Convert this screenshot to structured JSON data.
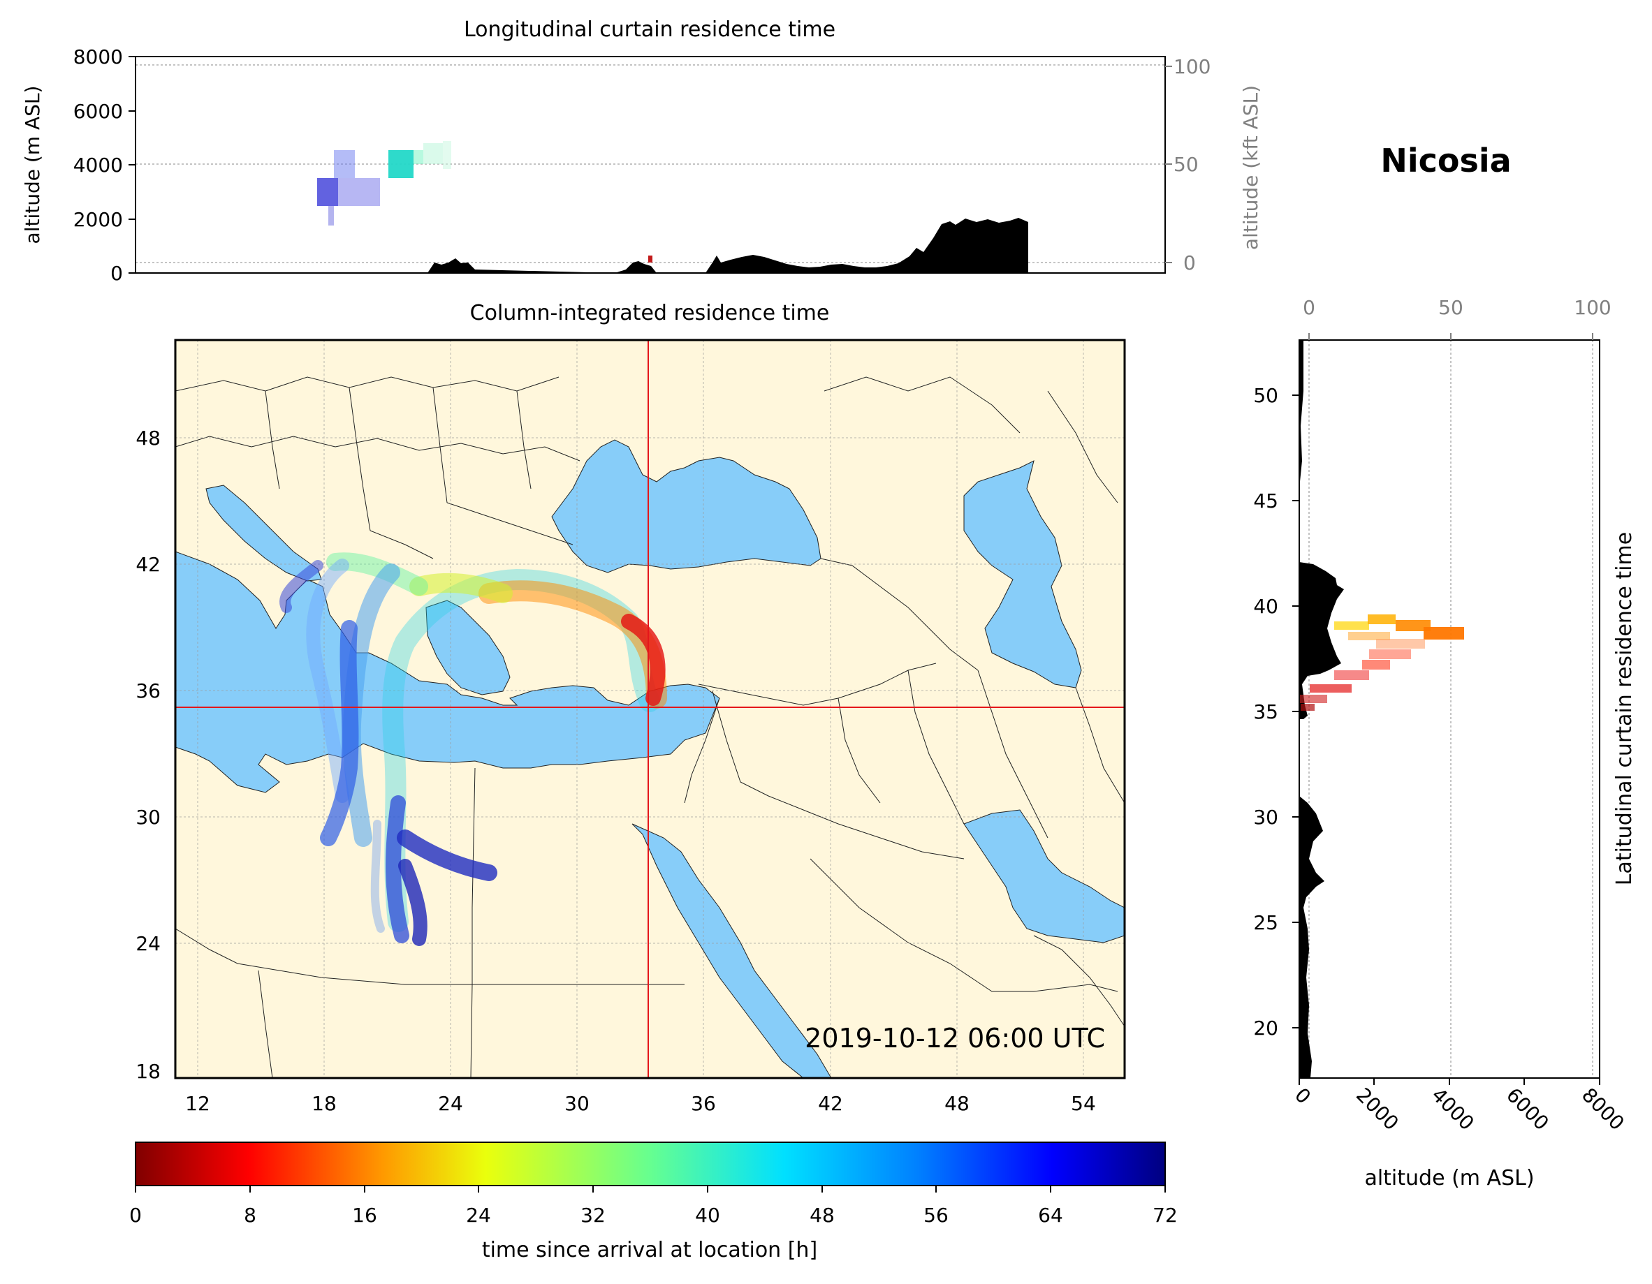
{
  "station": "Nicosia",
  "timestamp": "2019-10-12 06:00 UTC",
  "colors": {
    "land": "#fff7dc",
    "water": "#87cdf9",
    "crosshair": "#e4161b",
    "terrain": "#000000",
    "secondary_axis": "#808080"
  },
  "top_panel": {
    "title": "Longitudinal curtain residence time",
    "ylabel": "altitude (m ASL)",
    "ylabel_right": "altitude (kft ASL)",
    "yticks": [
      "0",
      "2000",
      "4000",
      "6000",
      "8000"
    ],
    "yticks_right": [
      "0",
      "50",
      "100"
    ]
  },
  "map_panel": {
    "title": "Column-integrated residence time",
    "xticks": [
      "12",
      "18",
      "24",
      "30",
      "36",
      "42",
      "48",
      "54"
    ],
    "yticks": [
      "18",
      "24",
      "30",
      "36",
      "42",
      "48"
    ],
    "crosshair": {
      "lon": 33.4,
      "lat": 35.2
    }
  },
  "right_panel": {
    "ylabel": "Latitudinal curtain residence time",
    "xlabel": "altitude (m ASL)",
    "xticks": [
      "0",
      "2000",
      "4000",
      "6000",
      "8000"
    ],
    "xticks_top": [
      "0",
      "50",
      "100"
    ],
    "yticks": [
      "20",
      "25",
      "30",
      "35",
      "40",
      "45",
      "50"
    ]
  },
  "colorbar": {
    "label": "time since arrival at location [h]",
    "ticks": [
      "0",
      "8",
      "16",
      "24",
      "32",
      "40",
      "48",
      "56",
      "64",
      "72"
    ],
    "range": [
      0,
      72
    ],
    "colormap": "jet (reversed: dark red at 0 h, dark blue at 72 h)"
  }
}
